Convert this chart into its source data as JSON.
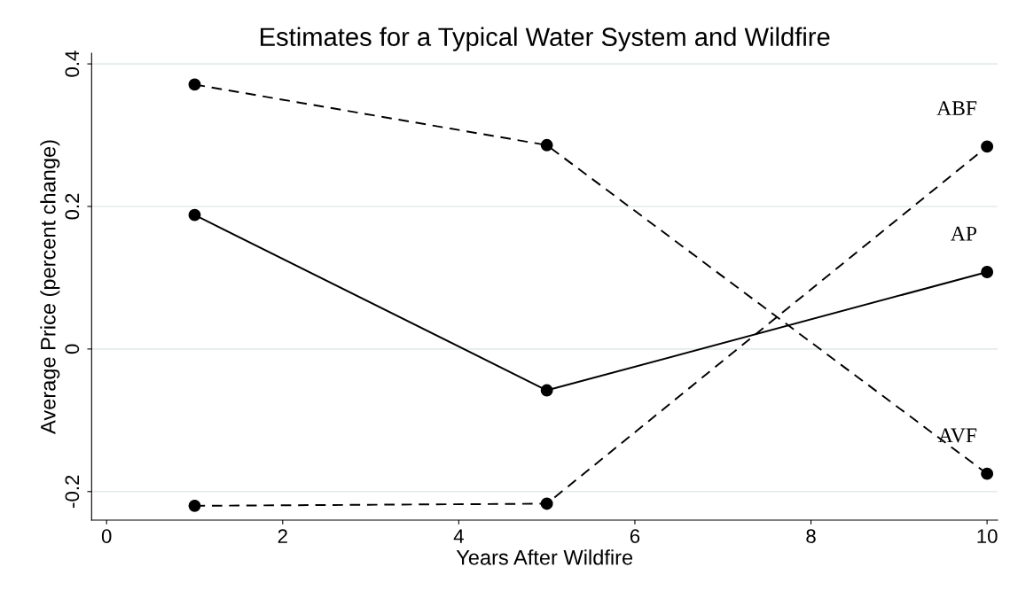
{
  "chart_data": {
    "type": "line",
    "title": "Estimates for a Typical Water System and Wildfire",
    "xlabel": "Years After Wildfire",
    "ylabel": "Average Price (percent change)",
    "x": [
      1,
      5,
      10
    ],
    "series": [
      {
        "name": "ABF",
        "color": "#000000",
        "line_style": "dashed",
        "values": [
          -0.22,
          -0.217,
          0.284
        ]
      },
      {
        "name": "AP",
        "color": "#000000",
        "line_style": "solid",
        "values": [
          0.188,
          -0.058,
          0.108
        ]
      },
      {
        "name": "AVF",
        "color": "#000000",
        "line_style": "dashed",
        "values": [
          0.371,
          0.286,
          -0.175
        ]
      }
    ],
    "xlim": [
      -0.17,
      10.12
    ],
    "ylim": [
      -0.24,
      0.415
    ],
    "xticks": [
      0,
      2,
      4,
      6,
      8,
      10
    ],
    "yticks": [
      {
        "value": -0.2,
        "label": "-0.2"
      },
      0,
      0.2,
      0.4
    ],
    "grid": "y",
    "marker": "circle",
    "legend": false
  }
}
